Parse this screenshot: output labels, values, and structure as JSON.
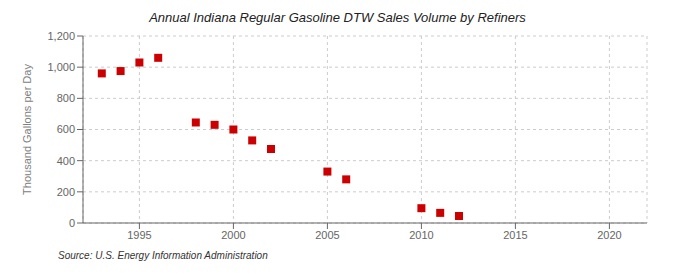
{
  "chart_data": {
    "type": "scatter",
    "title": "Annual Indiana Regular Gasoline DTW Sales Volume by Refiners",
    "y_label": "Thousand Gallons per Day",
    "annotations": [
      "Source: U.S. Energy Information Administration"
    ],
    "x": [
      1993,
      1994,
      1995,
      1996,
      1998,
      1999,
      2000,
      2001,
      2002,
      2005,
      2006,
      2010,
      2011,
      2012
    ],
    "values": [
      960,
      975,
      1030,
      1060,
      645,
      630,
      600,
      530,
      475,
      330,
      280,
      95,
      65,
      45
    ],
    "color": "#cc0000",
    "marker": "square",
    "xlim": [
      1992,
      2022
    ],
    "xticks": [
      1995,
      2000,
      2005,
      2010,
      2015,
      2020
    ],
    "ylim": [
      0,
      1200
    ],
    "yticks": [
      0,
      200,
      400,
      600,
      800,
      {
        "value": 1000,
        "label": "1,000"
      },
      {
        "value": 1200,
        "label": "1,200"
      }
    ],
    "grid": true
  }
}
